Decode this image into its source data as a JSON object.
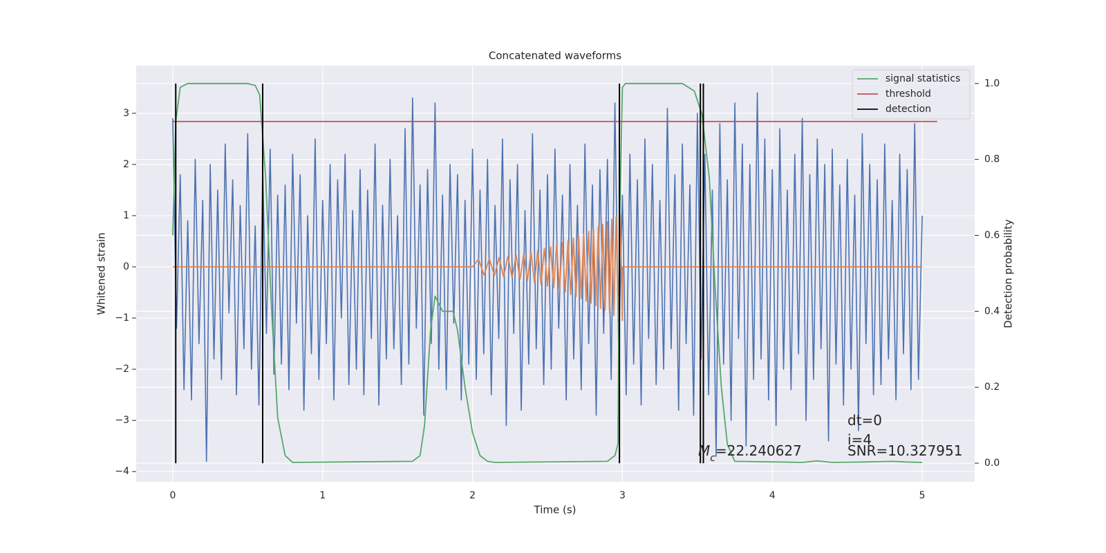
{
  "chart_data": {
    "type": "line",
    "title": "Concatenated waveforms",
    "xlabel": "Time (s)",
    "ylabel": "Whitened strain",
    "y2label": "Detection probability",
    "xlim": [
      -0.244,
      5.35
    ],
    "xticks": [
      0,
      1,
      2,
      3,
      4,
      5
    ],
    "ylim": [
      -4.2,
      3.93
    ],
    "yticks": [
      {
        "value": -4,
        "label": "−4"
      },
      {
        "value": -3,
        "label": "−3"
      },
      {
        "value": -2,
        "label": "−2"
      },
      {
        "value": -1,
        "label": "−1"
      },
      0,
      1,
      2,
      3
    ],
    "y2lim": [
      -0.049,
      1.047
    ],
    "y2ticks": [
      {
        "value": 0,
        "label": "0.0"
      },
      {
        "value": 0.2,
        "label": "0.2"
      },
      {
        "value": 0.4,
        "label": "0.4"
      },
      {
        "value": 0.6,
        "label": "0.6"
      },
      {
        "value": 0.8,
        "label": "0.8"
      },
      {
        "value": 1,
        "label": "1.0"
      }
    ],
    "grid": true,
    "legend": "upper right",
    "annotations": [
      "dt=0",
      "i=4",
      "SNR=10.327951"
    ],
    "mc_label": {
      "symbol": "M",
      "subscript": "c",
      "text": "=22.240627"
    },
    "series": [
      {
        "color": "#4c72b0",
        "x": [
          0,
          0.025,
          0.05,
          0.075,
          0.1,
          0.125,
          0.15,
          0.175,
          0.2,
          0.225,
          0.25,
          0.275,
          0.3,
          0.325,
          0.35,
          0.375,
          0.4,
          0.425,
          0.45,
          0.475,
          0.5,
          0.525,
          0.55,
          0.575,
          0.6,
          0.625,
          0.65,
          0.675,
          0.7,
          0.725,
          0.75,
          0.775,
          0.8,
          0.825,
          0.85,
          0.875,
          0.9,
          0.925,
          0.95,
          0.975,
          1,
          1.025,
          1.05,
          1.075,
          1.1,
          1.125,
          1.15,
          1.175,
          1.2,
          1.225,
          1.25,
          1.275,
          1.3,
          1.325,
          1.35,
          1.375,
          1.4,
          1.425,
          1.45,
          1.475,
          1.5,
          1.525,
          1.55,
          1.575,
          1.6,
          1.625,
          1.65,
          1.675,
          1.7,
          1.725,
          1.75,
          1.775,
          1.8,
          1.825,
          1.85,
          1.875,
          1.9,
          1.925,
          1.95,
          1.975,
          2,
          2.025,
          2.05,
          2.075,
          2.1,
          2.125,
          2.15,
          2.175,
          2.2,
          2.225,
          2.25,
          2.275,
          2.3,
          2.325,
          2.35,
          2.375,
          2.4,
          2.425,
          2.45,
          2.475,
          2.5,
          2.525,
          2.55,
          2.575,
          2.6,
          2.625,
          2.65,
          2.675,
          2.7,
          2.725,
          2.75,
          2.775,
          2.8,
          2.825,
          2.85,
          2.875,
          2.9,
          2.925,
          2.95,
          2.975,
          3,
          3.025,
          3.05,
          3.075,
          3.1,
          3.125,
          3.15,
          3.175,
          3.2,
          3.225,
          3.25,
          3.275,
          3.3,
          3.325,
          3.35,
          3.375,
          3.4,
          3.425,
          3.45,
          3.475,
          3.5,
          3.525,
          3.55,
          3.575,
          3.6,
          3.625,
          3.65,
          3.675,
          3.7,
          3.725,
          3.75,
          3.775,
          3.8,
          3.825,
          3.85,
          3.875,
          3.9,
          3.925,
          3.95,
          3.975,
          4,
          4.025,
          4.05,
          4.075,
          4.1,
          4.125,
          4.15,
          4.175,
          4.2,
          4.225,
          4.25,
          4.275,
          4.3,
          4.325,
          4.35,
          4.375,
          4.4,
          4.425,
          4.45,
          4.475,
          4.5,
          4.525,
          4.55,
          4.575,
          4.6,
          4.625,
          4.65,
          4.675,
          4.7,
          4.725,
          4.75,
          4.775,
          4.8,
          4.825,
          4.85,
          4.875,
          4.9,
          4.925,
          4.95,
          4.975,
          5
        ],
        "values": [
          2.9,
          -1.2,
          1.8,
          -2.4,
          0.9,
          -2.6,
          2.1,
          -1.5,
          1.3,
          -3.8,
          2.0,
          -1.8,
          1.5,
          -2.2,
          2.4,
          -0.9,
          1.7,
          -2.5,
          1.2,
          -1.6,
          2.6,
          -2.0,
          0.8,
          -2.7,
          1.9,
          -1.3,
          2.3,
          -2.1,
          1.4,
          -1.9,
          1.6,
          -2.4,
          2.2,
          -1.1,
          1.8,
          -2.8,
          1.0,
          -1.7,
          2.5,
          -2.2,
          1.3,
          -1.5,
          2.0,
          -2.6,
          1.7,
          -1.0,
          2.2,
          -2.3,
          1.1,
          -2.0,
          1.9,
          -2.5,
          1.5,
          -1.4,
          2.4,
          -2.7,
          1.2,
          -1.8,
          2.1,
          -1.6,
          1.0,
          -2.3,
          2.7,
          -1.9,
          3.3,
          -1.2,
          1.6,
          -2.9,
          1.9,
          -1.5,
          3.2,
          -2.0,
          1.4,
          -2.4,
          2.0,
          -1.1,
          1.8,
          -2.6,
          1.3,
          -1.9,
          2.3,
          -2.2,
          1.5,
          -1.7,
          2.1,
          -2.5,
          1.2,
          -1.4,
          2.5,
          -3.1,
          1.7,
          -1.3,
          2.0,
          -2.8,
          1.1,
          -1.9,
          2.6,
          -1.6,
          1.5,
          -2.3,
          1.8,
          -2.0,
          2.3,
          -1.2,
          1.4,
          -2.6,
          2.0,
          -1.8,
          1.2,
          -2.4,
          2.4,
          -1.5,
          1.6,
          -2.9,
          1.9,
          -1.3,
          2.1,
          -2.2,
          3.2,
          -1.7,
          1.4,
          -2.5,
          2.2,
          -1.9,
          1.7,
          -2.7,
          2.5,
          -1.4,
          2.0,
          -2.3,
          1.3,
          -2.0,
          3.1,
          -1.6,
          1.8,
          -2.8,
          2.4,
          -1.5,
          1.6,
          -2.9,
          3.0,
          -1.8,
          2.2,
          -2.5,
          1.5,
          -3.7,
          2.8,
          -1.9,
          1.7,
          -3.0,
          3.2,
          -1.4,
          2.4,
          -3.5,
          2.0,
          -2.2,
          3.4,
          -1.8,
          2.5,
          -2.6,
          1.9,
          -3.1,
          2.7,
          -2.0,
          1.5,
          -2.4,
          2.2,
          -1.7,
          2.9,
          -3.0,
          1.8,
          -2.2,
          2.5,
          -1.6,
          2.0,
          -3.4,
          2.3,
          -1.9,
          1.6,
          -2.7,
          2.1,
          -2.0,
          1.4,
          -3.2,
          2.6,
          -1.5,
          2.0,
          -2.5,
          1.7,
          -2.3,
          2.4,
          -1.8,
          1.3,
          -2.6,
          2.2,
          -1.7,
          1.9,
          -2.4,
          2.8,
          -2.2,
          1.0
        ]
      },
      {
        "color": "#dd8452",
        "x": [
          0,
          2,
          2.04,
          2.077,
          2.112,
          2.146,
          2.177,
          2.207,
          2.236,
          2.264,
          2.291,
          2.317,
          2.342,
          2.366,
          2.39,
          2.413,
          2.435,
          2.457,
          2.479,
          2.5,
          2.521,
          2.541,
          2.561,
          2.58,
          2.599,
          2.618,
          2.637,
          2.655,
          2.673,
          2.69,
          2.708,
          2.725,
          2.742,
          2.758,
          2.775,
          2.791,
          2.807,
          2.823,
          2.839,
          2.854,
          2.869,
          2.884,
          2.899,
          2.914,
          2.929,
          2.943,
          2.958,
          2.972,
          2.986,
          3,
          3,
          5
        ],
        "values": [
          0,
          0,
          0.15,
          -0.16,
          0.16,
          -0.17,
          0.18,
          -0.19,
          0.2,
          -0.21,
          0.23,
          -0.24,
          0.25,
          -0.27,
          0.29,
          -0.3,
          0.32,
          -0.34,
          0.36,
          -0.38,
          0.39,
          -0.41,
          0.43,
          -0.45,
          0.47,
          -0.49,
          0.51,
          -0.54,
          0.56,
          -0.58,
          0.6,
          -0.62,
          0.65,
          -0.67,
          0.69,
          -0.71,
          0.74,
          -0.76,
          0.78,
          -0.81,
          0.83,
          -0.85,
          0.88,
          -0.9,
          0.93,
          -0.95,
          0.98,
          -1.0,
          1.03,
          -1.05,
          0,
          0
        ]
      },
      {
        "name": "signal statistics",
        "color": "#55a868",
        "axis": "y2",
        "x": [
          0,
          0.02,
          0.05,
          0.1,
          0.5,
          0.55,
          0.58,
          0.62,
          0.66,
          0.7,
          0.75,
          0.8,
          1.6,
          1.65,
          1.68,
          1.72,
          1.75,
          1.8,
          1.87,
          1.9,
          1.95,
          2.0,
          2.05,
          2.1,
          2.15,
          2.9,
          2.95,
          2.97,
          2.98,
          3.0,
          3.02,
          3.4,
          3.48,
          3.53,
          3.58,
          3.62,
          3.66,
          3.7,
          3.75,
          4.2,
          4.3,
          4.4,
          4.6,
          4.8,
          4.9,
          5.0
        ],
        "values": [
          0.6,
          0.9,
          0.99,
          1.0,
          1.0,
          0.995,
          0.97,
          0.75,
          0.4,
          0.12,
          0.02,
          0.002,
          0.005,
          0.02,
          0.1,
          0.35,
          0.44,
          0.4,
          0.4,
          0.35,
          0.2,
          0.08,
          0.02,
          0.005,
          0.002,
          0.005,
          0.02,
          0.05,
          0.6,
          0.99,
          1.0,
          1.0,
          0.98,
          0.92,
          0.75,
          0.45,
          0.2,
          0.05,
          0.005,
          0.002,
          0.006,
          0.002,
          0.003,
          0.005,
          0.003,
          0.002
        ]
      },
      {
        "name": "threshold",
        "color": "#c44e52",
        "axis": "y2",
        "x": [
          0,
          5.1
        ],
        "values": [
          0.9,
          0.9
        ]
      },
      {
        "name": "detection",
        "color": "#000000",
        "axis": "y2",
        "kind": "vlines",
        "x": [
          0.02,
          0.6,
          2.98,
          3.52,
          3.54
        ],
        "ymin": 0,
        "ymax": 1
      }
    ]
  }
}
